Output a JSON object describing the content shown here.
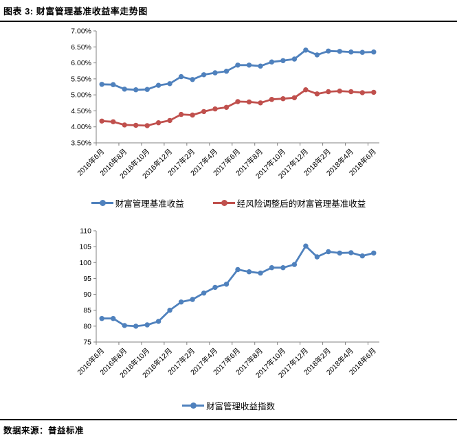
{
  "header": {
    "title": "图表 3: 财富管理基准收益率走势图"
  },
  "footer": {
    "source_label": "数据来源：",
    "source_value": "普益标准"
  },
  "colors": {
    "axis": "#808080",
    "series_blue": "#4F81BD",
    "series_red": "#C0504D"
  },
  "chart_data": [
    {
      "type": "line",
      "title": "",
      "x_tick_labels": [
        "2016年6月",
        "2016年8月",
        "2016年10月",
        "2016年12月",
        "2017年2月",
        "2017年4月",
        "2017年6月",
        "2017年8月",
        "2017年10月",
        "2017年12月",
        "2018年2月",
        "2018年4月",
        "2018年6月"
      ],
      "points_per_label": 2,
      "ylim": [
        3.5,
        7.0
      ],
      "ytick_step": 0.5,
      "ytick_format": "percent2",
      "grid": false,
      "legend_position": "bottom",
      "series": [
        {
          "name": "财富管理基准收益",
          "color": "#4F81BD",
          "values": [
            5.33,
            5.32,
            5.18,
            5.16,
            5.17,
            5.3,
            5.35,
            5.57,
            5.48,
            5.63,
            5.69,
            5.74,
            5.93,
            5.93,
            5.9,
            6.03,
            6.07,
            6.12,
            6.4,
            6.25,
            6.37,
            6.36,
            6.34,
            6.33,
            6.34
          ]
        },
        {
          "name": "经风险调整后的财富管理基准收益",
          "color": "#C0504D",
          "values": [
            4.18,
            4.16,
            4.06,
            4.05,
            4.04,
            4.13,
            4.2,
            4.39,
            4.37,
            4.48,
            4.56,
            4.61,
            4.79,
            4.78,
            4.75,
            4.86,
            4.88,
            4.91,
            5.16,
            5.03,
            5.1,
            5.12,
            5.1,
            5.07,
            5.08
          ]
        }
      ]
    },
    {
      "type": "line",
      "title": "",
      "x_tick_labels": [
        "2016年6月",
        "2016年8月",
        "2016年10月",
        "2016年12月",
        "2017年2月",
        "2017年4月",
        "2017年6月",
        "2017年8月",
        "2017年10月",
        "2017年12月",
        "2018年2月",
        "2018年4月",
        "2018年6月"
      ],
      "points_per_label": 2,
      "ylim": [
        75,
        110
      ],
      "ytick_step": 5,
      "ytick_format": "int",
      "grid": false,
      "legend_position": "bottom",
      "series": [
        {
          "name": "财富管理收益指数",
          "color": "#4F81BD",
          "values": [
            82.4,
            82.4,
            80.2,
            80.0,
            80.4,
            81.5,
            85.0,
            87.6,
            88.4,
            90.4,
            92.2,
            93.2,
            97.8,
            97.1,
            96.7,
            98.4,
            98.4,
            99.4,
            105.2,
            101.8,
            103.4,
            103.0,
            103.1,
            102.1,
            103.0
          ]
        }
      ]
    }
  ]
}
